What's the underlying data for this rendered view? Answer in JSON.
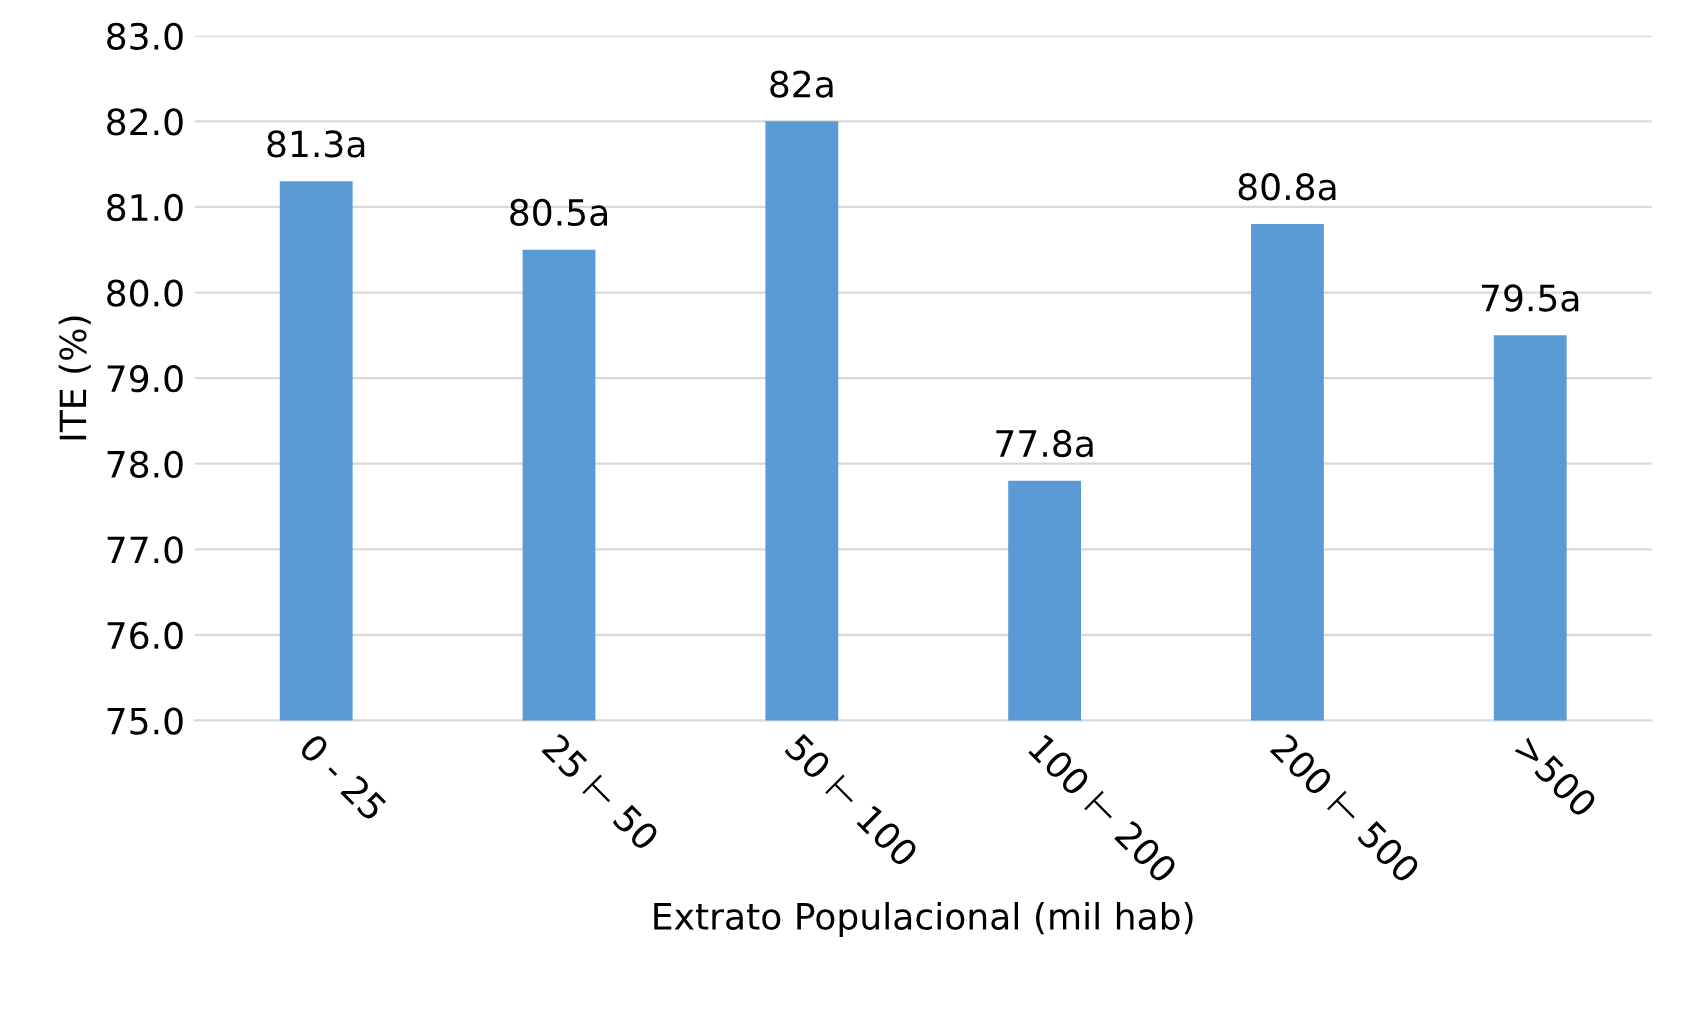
{
  "chart_data": {
    "type": "bar",
    "xlabel": "Extrato Populacional (mil hab)",
    "ylabel": "ITE (%)",
    "categories": [
      "0 - 25",
      "25 ⊢ 50",
      "50 ⊢ 100",
      "100 ⊢ 200",
      "200 ⊢ 500",
      ">500"
    ],
    "values": [
      81.3,
      80.5,
      82,
      77.8,
      80.8,
      79.5
    ],
    "value_labels": [
      "81.3a",
      "80.5a",
      "82a",
      "77.8a",
      "80.8a",
      "79.5a"
    ],
    "color": "#5b9bd5",
    "ylim": [
      75,
      83
    ],
    "yticks": [
      {
        "value": 75,
        "label": "75.0"
      },
      {
        "value": 76,
        "label": "76.0"
      },
      {
        "value": 77,
        "label": "77.0"
      },
      {
        "value": 78,
        "label": "78.0"
      },
      {
        "value": 79,
        "label": "79.0"
      },
      {
        "value": 80,
        "label": "80.0"
      },
      {
        "value": 81,
        "label": "81.0"
      },
      {
        "value": 82,
        "label": "82.0"
      },
      {
        "value": 83,
        "label": "83.0"
      }
    ],
    "grid": "y"
  }
}
